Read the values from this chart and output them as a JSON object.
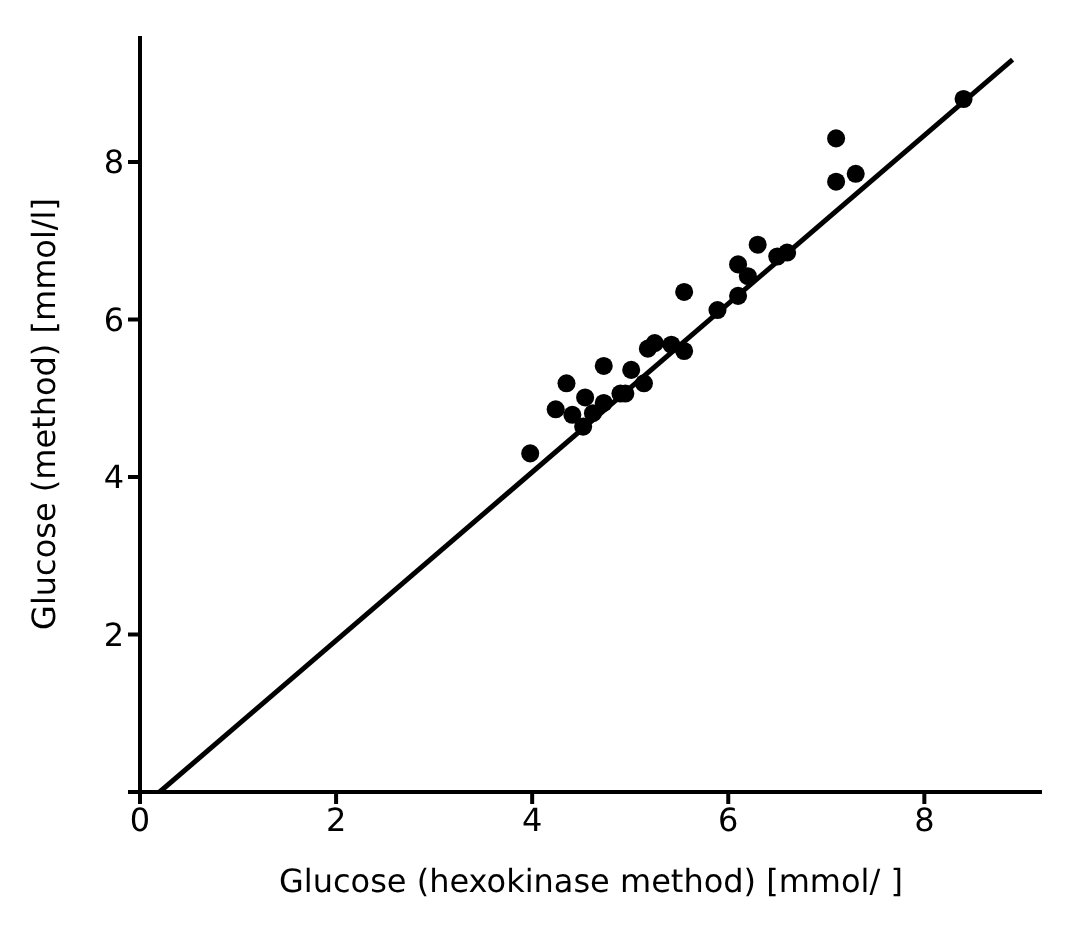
{
  "chart_data": {
    "type": "scatter",
    "xlabel": "Glucose (hexokinase method) [mmol/ ]",
    "ylabel": "Glucose (method) [mmol/l]",
    "xlim": [
      0,
      9.2
    ],
    "ylim": [
      0,
      9.6
    ],
    "xticks": [
      0,
      2,
      4,
      6,
      8
    ],
    "yticks": [
      {
        "value": 0,
        "label": null
      },
      2,
      4,
      6,
      8
    ],
    "grid": false,
    "marker": "circle",
    "series": [
      {
        "color": "#000000",
        "x": [
          3.98,
          4.24,
          4.35,
          4.41,
          4.52,
          4.54,
          4.62,
          4.73,
          4.73,
          4.9,
          4.95,
          5.01,
          5.14,
          5.18,
          5.25,
          5.42,
          5.55,
          5.55,
          5.89,
          6.1,
          6.1,
          6.2,
          6.3,
          6.5,
          6.6,
          7.1,
          7.1,
          7.3,
          8.4
        ],
        "values": [
          4.3,
          4.86,
          5.19,
          4.79,
          4.64,
          5.01,
          4.81,
          4.94,
          5.41,
          5.06,
          5.06,
          5.36,
          5.19,
          5.63,
          5.7,
          5.68,
          5.6,
          6.35,
          6.12,
          6.3,
          6.7,
          6.55,
          6.95,
          6.8,
          6.85,
          7.75,
          8.3,
          7.85,
          8.8
        ]
      },
      {
        "type": "line",
        "color": "#000000",
        "x": [
          0.2,
          8.9
        ],
        "values": [
          0,
          9.3
        ],
        "marker": "none",
        "line_style": "solid"
      }
    ]
  }
}
